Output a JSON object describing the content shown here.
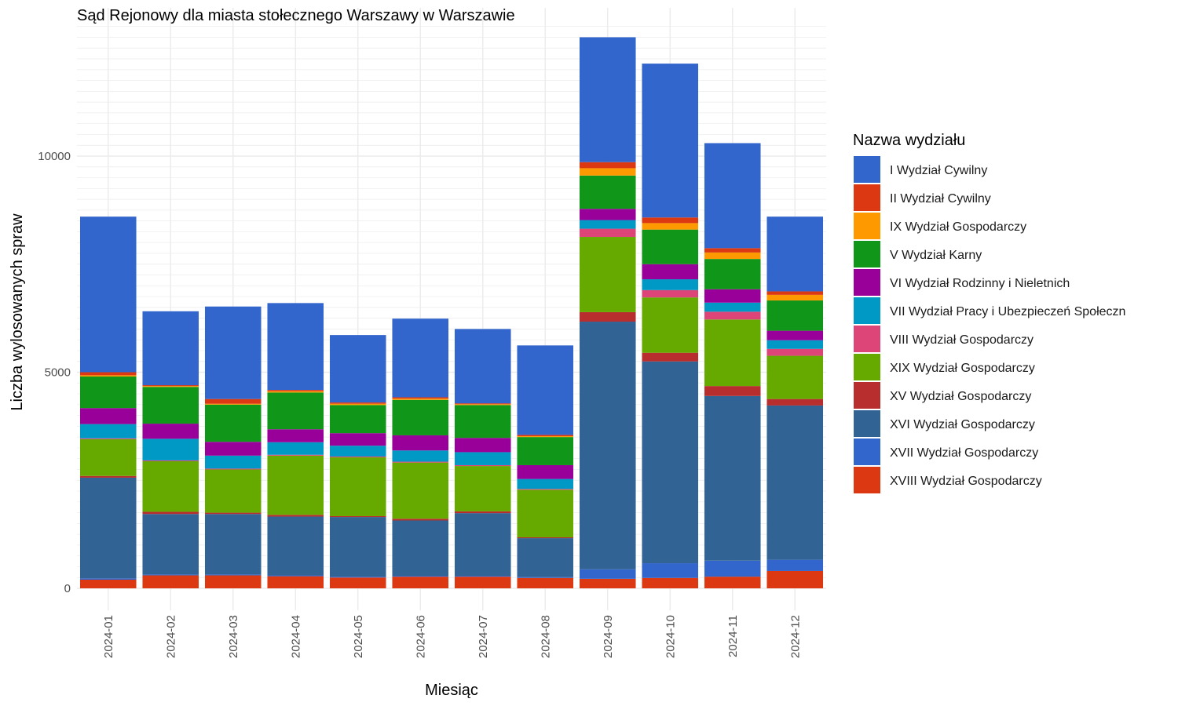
{
  "chart_data": {
    "type": "bar",
    "stacked": true,
    "title": "Sąd Rejonowy dla miasta stołecznego Warszawy w Warszawie",
    "xlabel": "Miesiąc",
    "ylabel": "Liczba wylosowanych spraw",
    "ylim": [
      0,
      13000
    ],
    "yticks": [
      0,
      5000,
      10000
    ],
    "grid": true,
    "legend_position": "right",
    "legend_title": "Nazwa wydziału",
    "categories": [
      "2024-01",
      "2024-02",
      "2024-03",
      "2024-04",
      "2024-05",
      "2024-06",
      "2024-07",
      "2024-08",
      "2024-09",
      "2024-10",
      "2024-11",
      "2024-12"
    ],
    "series": [
      {
        "name": "XVIII Wydział Gospodarczy",
        "color": "#DC3912",
        "values": [
          200,
          300,
          300,
          280,
          250,
          270,
          270,
          240,
          220,
          240,
          270,
          400
        ]
      },
      {
        "name": "XVII Wydział Gospodarczy",
        "color": "#3366CC",
        "values": [
          30,
          20,
          20,
          20,
          20,
          20,
          20,
          20,
          220,
          340,
          370,
          260
        ]
      },
      {
        "name": "XVI Wydział Gospodarczy",
        "color": "#316395",
        "values": [
          2330,
          1400,
          1400,
          1360,
          1380,
          1280,
          1450,
          900,
          5730,
          4670,
          3810,
          3570
        ]
      },
      {
        "name": "XV Wydział Gospodarczy",
        "color": "#B82E2E",
        "values": [
          40,
          50,
          30,
          40,
          20,
          40,
          40,
          20,
          220,
          200,
          230,
          150
        ]
      },
      {
        "name": "XIX Wydział Gospodarczy",
        "color": "#66AA00",
        "values": [
          850,
          1170,
          1000,
          1370,
          1360,
          1300,
          1050,
          1100,
          1740,
          1280,
          1540,
          1000
        ]
      },
      {
        "name": "VIII Wydział Gospodarczy",
        "color": "#DD4477",
        "values": [
          20,
          20,
          20,
          20,
          20,
          20,
          20,
          20,
          190,
          170,
          180,
          160
        ]
      },
      {
        "name": "VII Wydział Pracy i Ubezpieczeń Społeczn",
        "color": "#0099C6",
        "values": [
          330,
          500,
          300,
          290,
          250,
          260,
          300,
          230,
          200,
          250,
          210,
          200
        ]
      },
      {
        "name": "VI Wydział Rodzinny i Nieletnich",
        "color": "#990099",
        "values": [
          370,
          350,
          320,
          300,
          290,
          350,
          330,
          320,
          260,
          350,
          310,
          220
        ]
      },
      {
        "name": "V Wydział Karny",
        "color": "#109618",
        "values": [
          730,
          850,
          860,
          850,
          650,
          820,
          760,
          650,
          770,
          800,
          700,
          700
        ]
      },
      {
        "name": "IX Wydział Gospodarczy",
        "color": "#FF9900",
        "values": [
          30,
          20,
          20,
          30,
          30,
          30,
          20,
          20,
          170,
          150,
          150,
          130
        ]
      },
      {
        "name": "II Wydział Cywilny",
        "color": "#DC3912",
        "values": [
          70,
          20,
          110,
          30,
          30,
          30,
          20,
          30,
          140,
          130,
          100,
          80
        ]
      },
      {
        "name": "I Wydział Cywilny",
        "color": "#3366CC",
        "values": [
          3600,
          1710,
          2140,
          2010,
          1560,
          1820,
          1720,
          2070,
          2890,
          3560,
          2430,
          1730
        ]
      }
    ]
  }
}
